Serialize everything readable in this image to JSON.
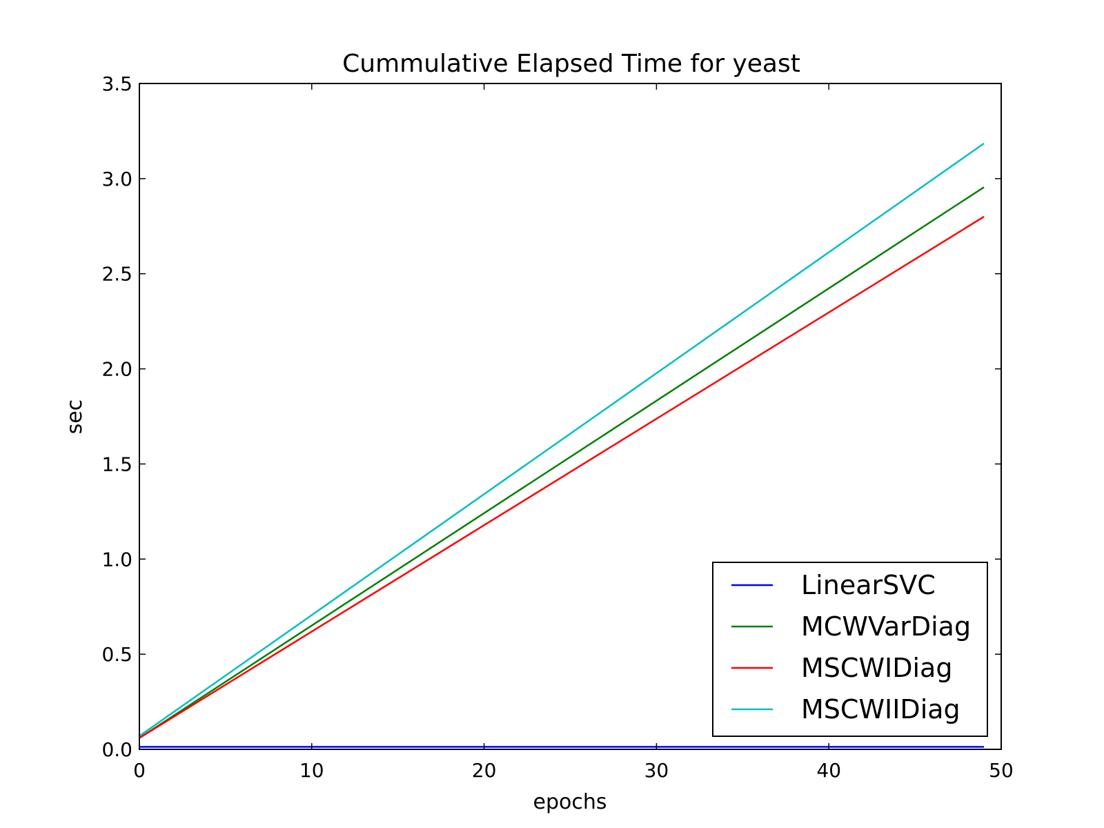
{
  "chart_data": {
    "type": "line",
    "title": "Cummulative Elapsed Time for yeast",
    "xlabel": "epochs",
    "ylabel": "sec",
    "xlim": [
      0,
      50
    ],
    "ylim": [
      0.0,
      3.5
    ],
    "xticks": [
      "0",
      "10",
      "20",
      "30",
      "40",
      "50"
    ],
    "yticks": [
      "0.0",
      "0.5",
      "1.0",
      "1.5",
      "2.0",
      "2.5",
      "3.0",
      "3.5"
    ],
    "grid": false,
    "legend_position": "lower-right",
    "series": [
      {
        "name": "LinearSVC",
        "color": "#0000ff",
        "x": [
          0,
          49
        ],
        "y": [
          0.013,
          0.013
        ]
      },
      {
        "name": "MCWVarDiag",
        "color": "#008000",
        "x": [
          0,
          49
        ],
        "y": [
          0.06,
          2.955
        ]
      },
      {
        "name": "MSCWIDiag",
        "color": "#ff0000",
        "x": [
          0,
          49
        ],
        "y": [
          0.06,
          2.8
        ]
      },
      {
        "name": "MSCWIIDiag",
        "color": "#00bfbf",
        "x": [
          0,
          49
        ],
        "y": [
          0.07,
          3.185
        ]
      }
    ]
  }
}
